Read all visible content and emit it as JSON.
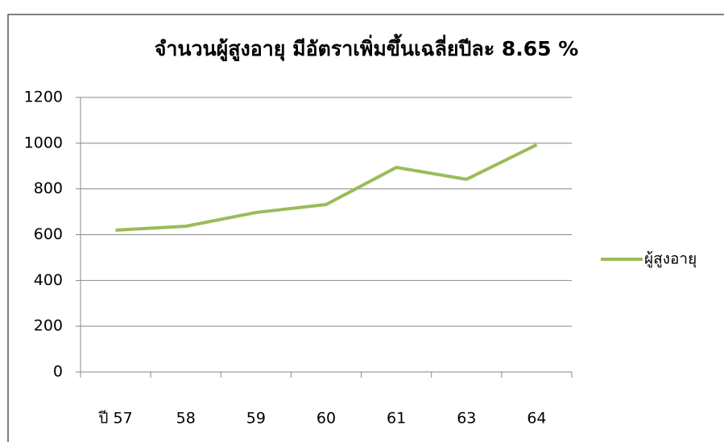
{
  "chart_data": {
    "type": "line",
    "title": "จำนวนผู้สูงอายุ มีอัตราเพิ่มขึ้นเฉลี่ยปีละ 8.65 %",
    "categories": [
      "ปี 57",
      "58",
      "59",
      "60",
      "61",
      "63",
      "64"
    ],
    "series": [
      {
        "name": "ผู้สูงอายุ",
        "color": "#9bbb59",
        "values": [
          620,
          637,
          697,
          732,
          894,
          842,
          993
        ]
      }
    ],
    "ylim": [
      0,
      1200
    ],
    "yticks": [
      0,
      200,
      400,
      600,
      800,
      1000,
      1200
    ],
    "grid": true,
    "legend": "right"
  }
}
